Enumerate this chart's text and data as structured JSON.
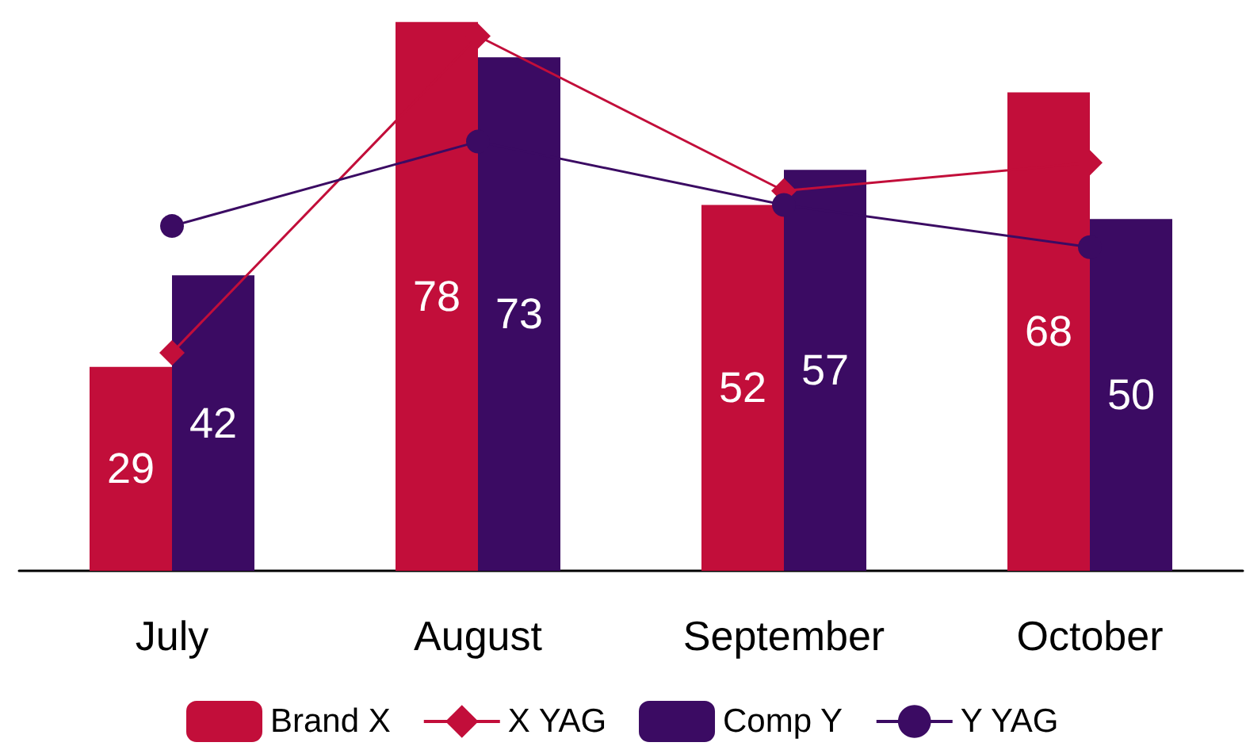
{
  "chart_data": {
    "type": "bar",
    "categories": [
      "July",
      "August",
      "September",
      "October"
    ],
    "series": [
      {
        "name": "Brand X",
        "color": "#c20e3a",
        "values": [
          29,
          78,
          52,
          68
        ],
        "value_labels": [
          "29",
          "78",
          "52",
          "68"
        ]
      },
      {
        "name": "X YAG",
        "type": "line",
        "color": "#c20e3a",
        "marker": "diamond",
        "values": [
          31,
          76,
          54,
          58
        ]
      },
      {
        "name": "Comp Y",
        "color": "#3b0b63",
        "values": [
          42,
          73,
          57,
          50
        ],
        "value_labels": [
          "42",
          "73",
          "57",
          "50"
        ]
      },
      {
        "name": "Y YAG",
        "type": "line",
        "color": "#3b0b63",
        "marker": "circle",
        "values": [
          49,
          61,
          52,
          46
        ]
      }
    ],
    "legend": "bottom",
    "grid": false
  }
}
